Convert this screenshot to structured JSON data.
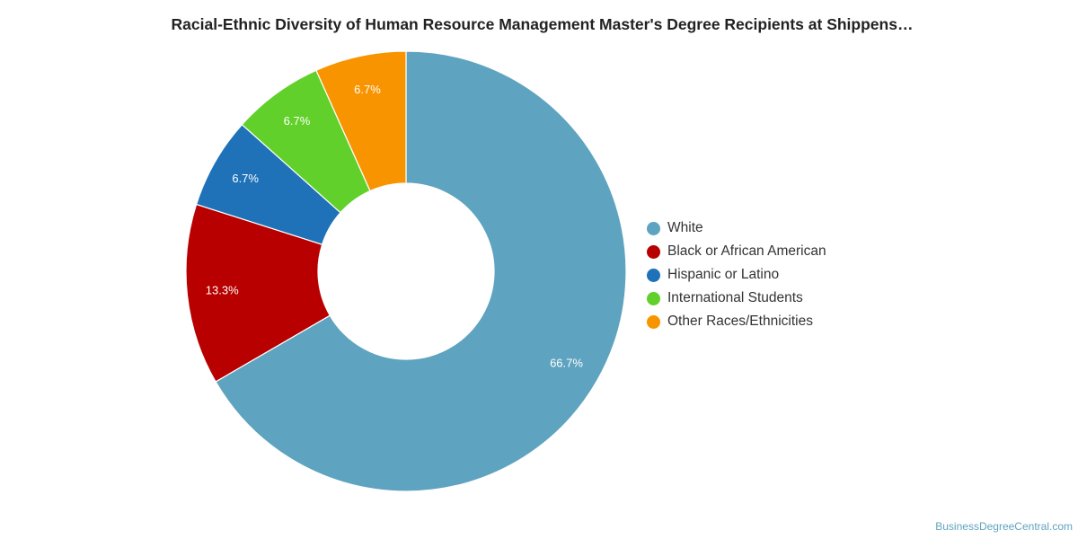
{
  "chart_data": {
    "type": "pie",
    "title": "Racial-Ethnic Diversity of Human Resource Management Master's Degree Recipients at Shippens…",
    "donut": true,
    "legend_position": "right",
    "categories": [
      "White",
      "Black or African American",
      "Hispanic or Latino",
      "International Students",
      "Other Races/Ethnicities"
    ],
    "values": [
      66.7,
      13.3,
      6.7,
      6.7,
      6.7
    ],
    "value_labels": [
      "66.7%",
      "13.3%",
      "6.7%",
      "6.7%",
      "6.7%"
    ],
    "colors": [
      "#5ea3bf",
      "#b80000",
      "#1f72b8",
      "#62d02a",
      "#f89400"
    ]
  },
  "credit": "BusinessDegreeCentral.com"
}
